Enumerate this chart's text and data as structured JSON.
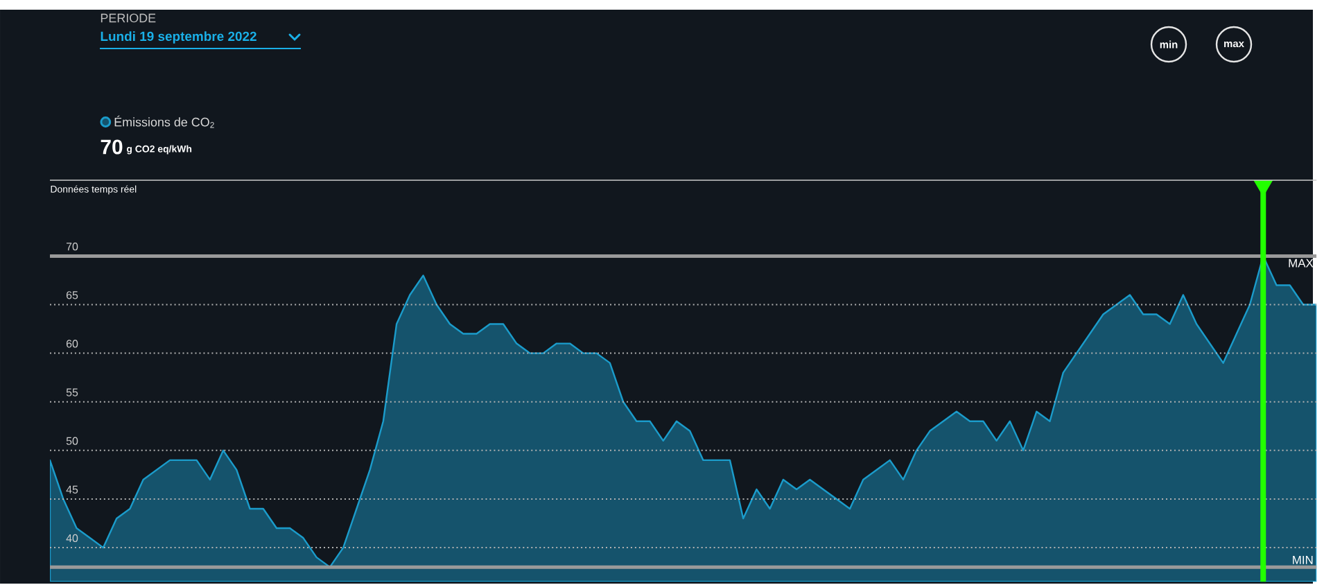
{
  "chart_data": {
    "type": "area",
    "categories": [
      null,
      null,
      null,
      null,
      null,
      null,
      null,
      null,
      null,
      null,
      null,
      null,
      null,
      null,
      null,
      null,
      null,
      null,
      null,
      null,
      null,
      null,
      null,
      null,
      null,
      null,
      null,
      null,
      null,
      null,
      null,
      null,
      null,
      null,
      null,
      null,
      null,
      null,
      null,
      null,
      null,
      null,
      null,
      null,
      null,
      null,
      null,
      null,
      null,
      null,
      null,
      null,
      null,
      null,
      null,
      null,
      null,
      null,
      null,
      null,
      null,
      null,
      null,
      null,
      null,
      null,
      null,
      null,
      null,
      null,
      null,
      null,
      null,
      null,
      null,
      null,
      null,
      null,
      null,
      null,
      null,
      null,
      null,
      null,
      null,
      null,
      null,
      null,
      null,
      null,
      null,
      null,
      null,
      null,
      null,
      null
    ],
    "series": [
      {
        "name": "Émissions de CO$_{2}$",
        "color": "#1b9ccb",
        "values": [
          49,
          45,
          42,
          41,
          40,
          43,
          44,
          47,
          48,
          49,
          49,
          49,
          47,
          50,
          48,
          44,
          44,
          42,
          42,
          41,
          39,
          38,
          40,
          44,
          48,
          53,
          63,
          66,
          68,
          65,
          63,
          62,
          62,
          63,
          63,
          61,
          60,
          60,
          61,
          61,
          60,
          60,
          59,
          55,
          53,
          53,
          51,
          53,
          52,
          49,
          49,
          49,
          43,
          46,
          44,
          47,
          46,
          47,
          46,
          45,
          44,
          47,
          48,
          49,
          47,
          50,
          52,
          53,
          54,
          53,
          53,
          51,
          53,
          50,
          54,
          53,
          58,
          60,
          62,
          64,
          65,
          66,
          64,
          64,
          63,
          66,
          63,
          61,
          59,
          62,
          65,
          70,
          67,
          67,
          65,
          65
        ]
      }
    ],
    "ylim": [
      36.5,
      77.8
    ],
    "yticks": [
      40,
      45,
      50,
      55,
      60,
      65,
      70
    ],
    "grid": "y",
    "legend": "top left",
    "ref_lines": [
      {
        "axis": "y",
        "value": 70,
        "label": "MAX",
        "color": "#9a9a9a"
      },
      {
        "axis": "y",
        "value": 38,
        "label": "MIN",
        "color": "#9a9a9a"
      }
    ],
    "annotations": [
      "PERIODE",
      "Lundi 19 septembre 2022",
      "70",
      "g CO2 eq/kWh",
      "Données temps réel",
      "min",
      "max"
    ]
  }
}
